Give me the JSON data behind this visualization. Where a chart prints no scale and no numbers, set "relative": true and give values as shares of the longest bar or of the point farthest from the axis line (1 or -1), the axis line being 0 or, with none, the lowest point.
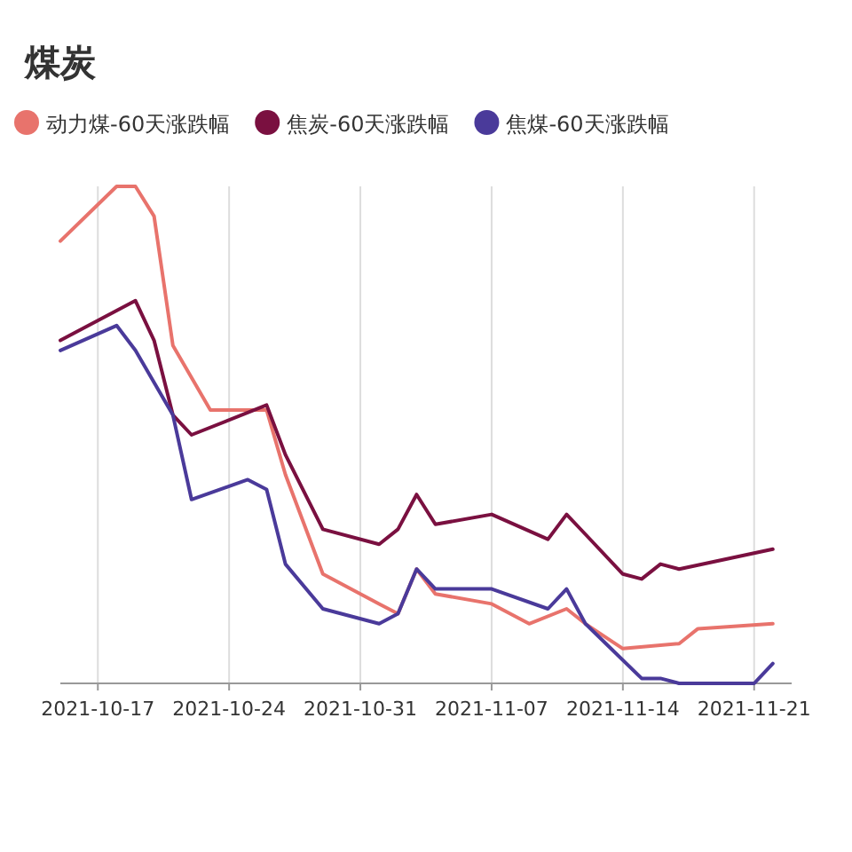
{
  "chart_data": {
    "type": "line",
    "title": "煤炭",
    "relative": true,
    "grid": "x",
    "legend": "top",
    "marker": "none",
    "line_style": "solid",
    "xlim": [
      "2021-10-15",
      "2021-11-23"
    ],
    "xticks": [
      {
        "value": "2021-10-17",
        "label": "2021-10-17"
      },
      {
        "value": "2021-10-24",
        "label": "2021-10-24"
      },
      {
        "value": "2021-10-31",
        "label": "2021-10-31"
      },
      {
        "value": "2021-11-07",
        "label": "2021-11-07"
      },
      {
        "value": "2021-11-14",
        "label": "2021-11-14"
      },
      {
        "value": "2021-11-21",
        "label": "2021-11-21"
      }
    ],
    "series": [
      {
        "name": "动力煤-60天涨跌幅",
        "color": "#e8736c",
        "x": [
          "2021-10-15",
          "2021-10-18",
          "2021-10-19",
          "2021-10-20",
          "2021-10-21",
          "2021-10-23",
          "2021-10-26",
          "2021-10-27",
          "2021-10-29",
          "2021-11-01",
          "2021-11-02",
          "2021-11-03",
          "2021-11-04",
          "2021-11-07",
          "2021-11-09",
          "2021-11-11",
          "2021-11-12",
          "2021-11-14",
          "2021-11-17",
          "2021-11-18",
          "2021-11-22"
        ],
        "values": [
          0.89,
          1,
          1,
          0.94,
          0.68,
          0.55,
          0.55,
          0.42,
          0.22,
          0.16,
          0.14,
          0.23,
          0.18,
          0.16,
          0.12,
          0.15,
          0.12,
          0.07,
          0.08,
          0.11,
          0.12
        ]
      },
      {
        "name": "焦炭-60天涨跌幅",
        "color": "#7a1040",
        "x": [
          "2021-10-15",
          "2021-10-19",
          "2021-10-20",
          "2021-10-21",
          "2021-10-22",
          "2021-10-26",
          "2021-10-27",
          "2021-10-29",
          "2021-11-01",
          "2021-11-02",
          "2021-11-03",
          "2021-11-04",
          "2021-11-07",
          "2021-11-10",
          "2021-11-11",
          "2021-11-12",
          "2021-11-14",
          "2021-11-15",
          "2021-11-16",
          "2021-11-17",
          "2021-11-22"
        ],
        "values": [
          0.69,
          0.77,
          0.69,
          0.54,
          0.5,
          0.56,
          0.46,
          0.31,
          0.28,
          0.31,
          0.38,
          0.32,
          0.34,
          0.29,
          0.34,
          0.3,
          0.22,
          0.21,
          0.24,
          0.23,
          0.27
        ]
      },
      {
        "name": "焦煤-60天涨跌幅",
        "color": "#4a3a9a",
        "x": [
          "2021-10-15",
          "2021-10-18",
          "2021-10-19",
          "2021-10-21",
          "2021-10-22",
          "2021-10-25",
          "2021-10-26",
          "2021-10-27",
          "2021-10-29",
          "2021-11-01",
          "2021-11-02",
          "2021-11-03",
          "2021-11-04",
          "2021-11-07",
          "2021-11-10",
          "2021-11-11",
          "2021-11-12",
          "2021-11-15",
          "2021-11-16",
          "2021-11-17",
          "2021-11-21",
          "2021-11-22"
        ],
        "values": [
          0.67,
          0.72,
          0.67,
          0.54,
          0.37,
          0.41,
          0.39,
          0.24,
          0.15,
          0.12,
          0.14,
          0.23,
          0.19,
          0.19,
          0.15,
          0.19,
          0.12,
          0.01,
          0.01,
          0,
          0,
          0.04
        ]
      }
    ]
  }
}
